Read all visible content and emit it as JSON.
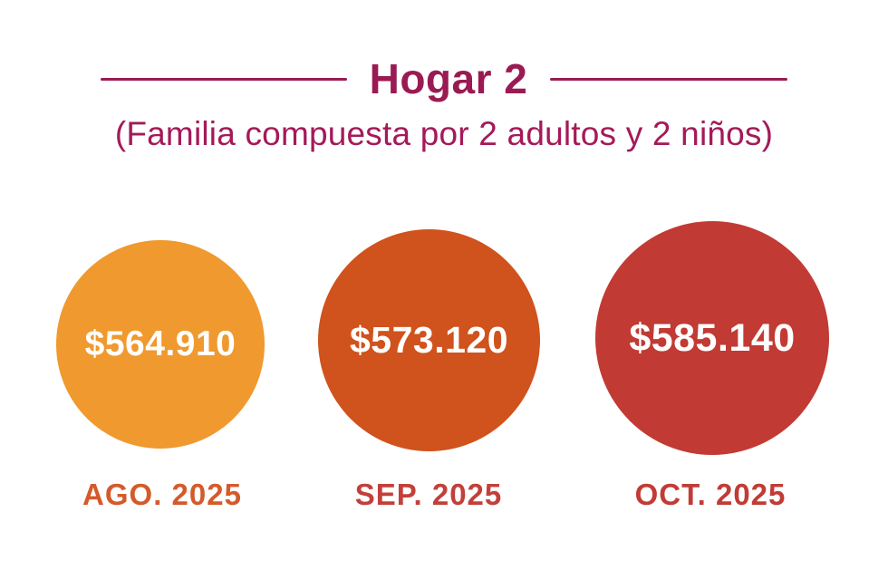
{
  "header": {
    "title": "Hogar 2",
    "subtitle": "(Familia compuesta por 2 adultos y 2 niños)",
    "accent_color": "#9A1B53",
    "subtitle_color": "#A41A59"
  },
  "bubbles": [
    {
      "month": "AGO. 2025",
      "amount": "$564.910",
      "circle_color": "#F0992E",
      "label_color": "#D55A2B"
    },
    {
      "month": "SEP. 2025",
      "amount": "$573.120",
      "circle_color": "#D0521C",
      "label_color": "#C3403A"
    },
    {
      "month": "OCT. 2025",
      "amount": "$585.140",
      "circle_color": "#C23A34",
      "label_color": "#C23B35"
    }
  ],
  "chart_data": {
    "type": "bubble",
    "title": "Hogar 2",
    "subtitle": "(Familia compuesta por 2 adultos y 2 niños)",
    "categories": [
      "AGO. 2025",
      "SEP. 2025",
      "OCT. 2025"
    ],
    "values": [
      564910,
      573120,
      585140
    ],
    "value_labels": [
      "$564.910",
      "$573.120",
      "$585.140"
    ],
    "currency": "$",
    "colors": [
      "#F0992E",
      "#D0521C",
      "#C23A34"
    ],
    "legend": "none",
    "layout": "three proportional circles left-to-right with value inside each circle and month label below"
  }
}
